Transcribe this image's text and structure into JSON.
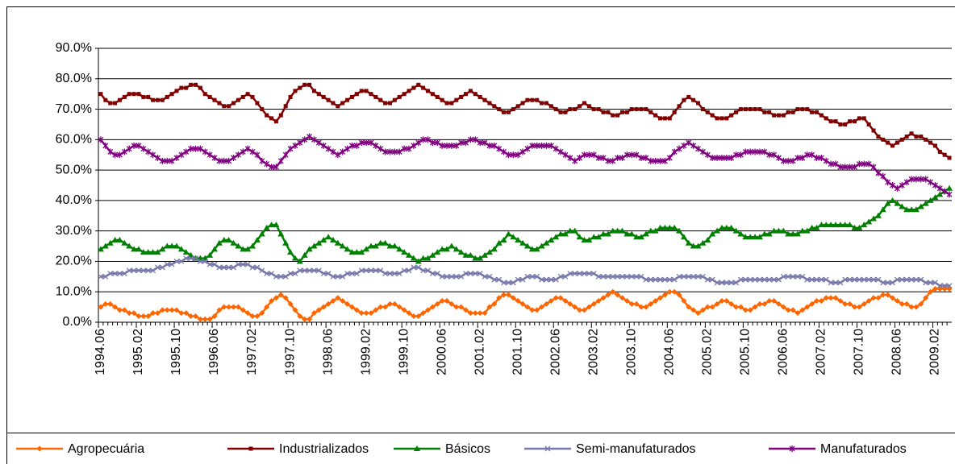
{
  "chart_data": {
    "type": "line",
    "categories": [
      "1994.06",
      null,
      null,
      null,
      null,
      null,
      null,
      null,
      "1995.02",
      null,
      null,
      null,
      null,
      null,
      null,
      null,
      "1995.10",
      null,
      null,
      null,
      null,
      null,
      null,
      null,
      "1996.06",
      null,
      null,
      null,
      null,
      null,
      null,
      null,
      "1997.02",
      null,
      null,
      null,
      null,
      null,
      null,
      null,
      "1997.10",
      null,
      null,
      null,
      null,
      null,
      null,
      null,
      "1998.06",
      null,
      null,
      null,
      null,
      null,
      null,
      null,
      "1999.02",
      null,
      null,
      null,
      null,
      null,
      null,
      null,
      "1999.10",
      null,
      null,
      null,
      null,
      null,
      null,
      null,
      "2000.06",
      null,
      null,
      null,
      null,
      null,
      null,
      null,
      "2001.02",
      null,
      null,
      null,
      null,
      null,
      null,
      null,
      "2001.10",
      null,
      null,
      null,
      null,
      null,
      null,
      null,
      "2002.06",
      null,
      null,
      null,
      null,
      null,
      null,
      null,
      "2003.02",
      null,
      null,
      null,
      null,
      null,
      null,
      null,
      "2003.10",
      null,
      null,
      null,
      null,
      null,
      null,
      null,
      "2004.06",
      null,
      null,
      null,
      null,
      null,
      null,
      null,
      "2005.02",
      null,
      null,
      null,
      null,
      null,
      null,
      null,
      "2005.10",
      null,
      null,
      null,
      null,
      null,
      null,
      null,
      "2006.06",
      null,
      null,
      null,
      null,
      null,
      null,
      null,
      "2007.02",
      null,
      null,
      null,
      null,
      null,
      null,
      null,
      "2007.10",
      null,
      null,
      null,
      null,
      null,
      null,
      null,
      "2008.06",
      null,
      null,
      null,
      null,
      null,
      null,
      null,
      "2009.02",
      null,
      null,
      null
    ],
    "series": [
      {
        "name": "Agropecuária",
        "color": "#ff6600",
        "marker": "diamond",
        "values": [
          5,
          6,
          6,
          5,
          4,
          4,
          3,
          3,
          2,
          2,
          2,
          3,
          3,
          4,
          4,
          4,
          4,
          3,
          3,
          2,
          2,
          1,
          1,
          1,
          2,
          4,
          5,
          5,
          5,
          5,
          4,
          3,
          2,
          2,
          3,
          5,
          7,
          8,
          9,
          8,
          6,
          4,
          2,
          1,
          1,
          3,
          4,
          5,
          6,
          7,
          8,
          7,
          6,
          5,
          4,
          3,
          3,
          3,
          4,
          5,
          5,
          6,
          6,
          5,
          4,
          3,
          2,
          2,
          3,
          4,
          5,
          6,
          7,
          7,
          6,
          5,
          5,
          4,
          3,
          3,
          3,
          3,
          5,
          6,
          8,
          9,
          9,
          8,
          7,
          6,
          5,
          4,
          4,
          5,
          6,
          7,
          8,
          8,
          7,
          6,
          5,
          4,
          4,
          5,
          6,
          7,
          8,
          9,
          10,
          9,
          8,
          7,
          6,
          6,
          5,
          5,
          6,
          7,
          8,
          9,
          10,
          10,
          9,
          7,
          5,
          4,
          3,
          4,
          5,
          5,
          6,
          7,
          7,
          6,
          5,
          5,
          4,
          4,
          5,
          6,
          6,
          7,
          7,
          6,
          5,
          4,
          4,
          3,
          4,
          5,
          6,
          7,
          7,
          8,
          8,
          8,
          7,
          6,
          6,
          5,
          5,
          6,
          7,
          8,
          8,
          9,
          9,
          8,
          7,
          6,
          6,
          5,
          5,
          6,
          8,
          10,
          11,
          11,
          11,
          11
        ]
      },
      {
        "name": "Industrializados",
        "color": "#800000",
        "marker": "square",
        "values": [
          75,
          73,
          72,
          72,
          73,
          74,
          75,
          75,
          75,
          74,
          74,
          73,
          73,
          73,
          74,
          75,
          76,
          77,
          77,
          78,
          78,
          77,
          75,
          74,
          73,
          72,
          71,
          71,
          72,
          73,
          74,
          75,
          74,
          72,
          70,
          68,
          67,
          66,
          68,
          71,
          74,
          76,
          77,
          78,
          78,
          76,
          75,
          74,
          73,
          72,
          71,
          72,
          73,
          74,
          75,
          76,
          76,
          75,
          74,
          73,
          72,
          72,
          73,
          74,
          75,
          76,
          77,
          78,
          77,
          76,
          75,
          74,
          73,
          72,
          72,
          73,
          74,
          75,
          76,
          75,
          74,
          73,
          72,
          71,
          70,
          69,
          69,
          70,
          71,
          72,
          73,
          73,
          73,
          72,
          72,
          71,
          70,
          69,
          69,
          70,
          70,
          71,
          72,
          71,
          70,
          70,
          69,
          69,
          68,
          68,
          69,
          69,
          70,
          70,
          70,
          70,
          69,
          68,
          67,
          67,
          67,
          69,
          71,
          73,
          74,
          73,
          72,
          70,
          69,
          68,
          67,
          67,
          67,
          68,
          69,
          70,
          70,
          70,
          70,
          70,
          69,
          69,
          68,
          68,
          68,
          69,
          69,
          70,
          70,
          70,
          69,
          69,
          68,
          67,
          66,
          66,
          65,
          65,
          66,
          66,
          67,
          67,
          65,
          63,
          61,
          60,
          59,
          58,
          59,
          60,
          61,
          62,
          61,
          61,
          60,
          59,
          58,
          56,
          55,
          54
        ]
      },
      {
        "name": "Básicos",
        "color": "#008000",
        "marker": "triangle",
        "values": [
          24,
          25,
          26,
          27,
          27,
          26,
          25,
          24,
          24,
          23,
          23,
          23,
          23,
          24,
          25,
          25,
          25,
          24,
          23,
          22,
          21,
          21,
          21,
          22,
          24,
          26,
          27,
          27,
          26,
          25,
          24,
          24,
          25,
          27,
          29,
          31,
          32,
          32,
          29,
          26,
          23,
          21,
          20,
          22,
          24,
          25,
          26,
          27,
          28,
          27,
          26,
          25,
          24,
          23,
          23,
          23,
          24,
          25,
          25,
          26,
          26,
          25,
          25,
          24,
          23,
          22,
          21,
          20,
          21,
          21,
          22,
          23,
          24,
          24,
          25,
          24,
          23,
          22,
          22,
          21,
          21,
          22,
          23,
          24,
          26,
          27,
          29,
          28,
          27,
          26,
          25,
          24,
          24,
          25,
          26,
          27,
          28,
          29,
          29,
          30,
          30,
          28,
          27,
          27,
          28,
          28,
          29,
          29,
          30,
          30,
          30,
          29,
          29,
          28,
          28,
          29,
          30,
          30,
          31,
          31,
          31,
          31,
          30,
          28,
          26,
          25,
          25,
          26,
          27,
          29,
          30,
          31,
          31,
          31,
          30,
          29,
          28,
          28,
          28,
          28,
          29,
          29,
          30,
          30,
          30,
          29,
          29,
          29,
          30,
          30,
          31,
          31,
          32,
          32,
          32,
          32,
          32,
          32,
          32,
          31,
          31,
          32,
          33,
          34,
          35,
          37,
          39,
          40,
          39,
          38,
          37,
          37,
          37,
          38,
          39,
          40,
          41,
          42,
          43,
          44
        ]
      },
      {
        "name": "Semi-manufaturados",
        "color": "#7777aa",
        "marker": "x",
        "values": [
          15,
          15,
          16,
          16,
          16,
          16,
          17,
          17,
          17,
          17,
          17,
          17,
          18,
          18,
          19,
          19,
          20,
          20,
          21,
          21,
          21,
          20,
          20,
          19,
          19,
          18,
          18,
          18,
          18,
          19,
          19,
          19,
          18,
          18,
          17,
          16,
          16,
          15,
          15,
          15,
          16,
          16,
          17,
          17,
          17,
          17,
          17,
          16,
          16,
          15,
          15,
          15,
          16,
          16,
          16,
          17,
          17,
          17,
          17,
          17,
          16,
          16,
          16,
          16,
          17,
          17,
          18,
          18,
          17,
          17,
          16,
          16,
          15,
          15,
          15,
          15,
          15,
          16,
          16,
          16,
          16,
          15,
          15,
          14,
          14,
          13,
          13,
          13,
          14,
          14,
          15,
          15,
          15,
          14,
          14,
          14,
          14,
          15,
          15,
          16,
          16,
          16,
          16,
          16,
          16,
          15,
          15,
          15,
          15,
          15,
          15,
          15,
          15,
          15,
          15,
          14,
          14,
          14,
          14,
          14,
          14,
          14,
          15,
          15,
          15,
          15,
          15,
          15,
          14,
          14,
          13,
          13,
          13,
          13,
          13,
          14,
          14,
          14,
          14,
          14,
          14,
          14,
          14,
          14,
          15,
          15,
          15,
          15,
          15,
          14,
          14,
          14,
          14,
          14,
          13,
          13,
          13,
          14,
          14,
          14,
          14,
          14,
          14,
          14,
          14,
          13,
          13,
          13,
          14,
          14,
          14,
          14,
          14,
          14,
          13,
          13,
          13,
          12,
          12,
          12
        ]
      },
      {
        "name": "Manufaturados",
        "color": "#800080",
        "marker": "star",
        "values": [
          60,
          58,
          56,
          55,
          55,
          56,
          57,
          58,
          58,
          57,
          56,
          55,
          54,
          53,
          53,
          53,
          54,
          55,
          56,
          57,
          57,
          57,
          56,
          55,
          54,
          53,
          53,
          53,
          54,
          55,
          56,
          57,
          56,
          55,
          53,
          52,
          51,
          51,
          53,
          55,
          57,
          58,
          59,
          60,
          61,
          60,
          59,
          58,
          57,
          56,
          55,
          56,
          57,
          58,
          58,
          59,
          59,
          59,
          58,
          57,
          56,
          56,
          56,
          56,
          57,
          57,
          58,
          59,
          60,
          60,
          59,
          59,
          58,
          58,
          58,
          58,
          59,
          59,
          60,
          60,
          59,
          59,
          58,
          58,
          57,
          56,
          55,
          55,
          55,
          56,
          57,
          58,
          58,
          58,
          58,
          58,
          57,
          56,
          55,
          54,
          53,
          54,
          55,
          55,
          55,
          54,
          54,
          53,
          53,
          54,
          54,
          55,
          55,
          55,
          54,
          54,
          53,
          53,
          53,
          53,
          54,
          56,
          57,
          58,
          59,
          58,
          57,
          56,
          55,
          54,
          54,
          54,
          54,
          54,
          55,
          55,
          56,
          56,
          56,
          56,
          56,
          55,
          55,
          54,
          53,
          53,
          53,
          54,
          54,
          55,
          55,
          54,
          54,
          53,
          52,
          52,
          51,
          51,
          51,
          51,
          52,
          52,
          52,
          51,
          49,
          48,
          46,
          45,
          44,
          45,
          46,
          47,
          47,
          47,
          47,
          46,
          45,
          44,
          43,
          42
        ]
      }
    ],
    "ylim": [
      0,
      90
    ],
    "yticks": [
      {
        "value": 0,
        "label": "0.0%"
      },
      {
        "value": 10,
        "label": "10.0%"
      },
      {
        "value": 20,
        "label": "20.0%"
      },
      {
        "value": 30,
        "label": "30.0%"
      },
      {
        "value": 40,
        "label": "40.0%"
      },
      {
        "value": 50,
        "label": "50.0%"
      },
      {
        "value": 60,
        "label": "60.0%"
      },
      {
        "value": 70,
        "label": "70.0%"
      },
      {
        "value": 80,
        "label": "80.0%"
      },
      {
        "value": 90,
        "label": "90.0%"
      }
    ],
    "grid": true,
    "legend": "bottom"
  }
}
